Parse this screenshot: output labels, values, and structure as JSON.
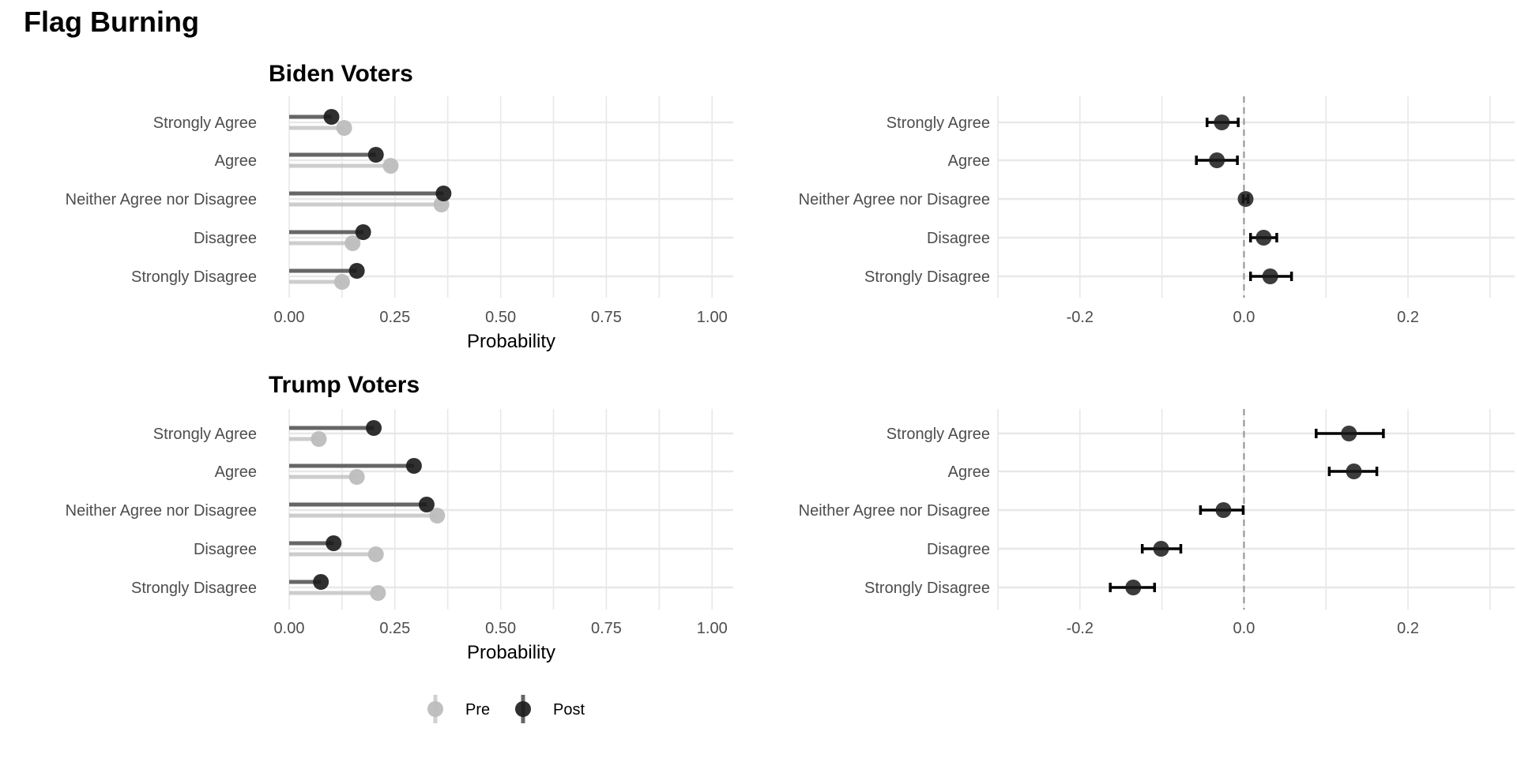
{
  "title": "Flag Burning",
  "legend": {
    "placement": "bottom",
    "entries": [
      {
        "label": "Pre",
        "color": "#bdbdbd"
      },
      {
        "label": "Post",
        "color": "#1a1a1a"
      }
    ]
  },
  "colors": {
    "pre": "#bdbdbd",
    "post": "#1a1a1a",
    "grid": "#e8e8e8",
    "zero_line": "#999999"
  },
  "chart_data": [
    {
      "type": "lollipop",
      "panel_title": "Biden Voters",
      "categories": [
        "Strongly Agree",
        "Agree",
        "Neither Agree nor Disagree",
        "Disagree",
        "Strongly Disagree"
      ],
      "series": [
        {
          "name": "Pre",
          "values": [
            0.13,
            0.24,
            0.36,
            0.15,
            0.125
          ]
        },
        {
          "name": "Post",
          "values": [
            0.1,
            0.205,
            0.365,
            0.175,
            0.16
          ]
        }
      ],
      "xlabel": "Probability",
      "xlim": [
        0,
        1.05
      ],
      "xticks": [
        "0.00",
        "0.25",
        "0.50",
        "0.75",
        "1.00"
      ],
      "xtick_values": [
        0,
        0.25,
        0.5,
        0.75,
        1.0
      ],
      "grid": true
    },
    {
      "type": "dot-errorbar",
      "panel_title": "",
      "categories": [
        "Strongly Agree",
        "Agree",
        "Neither Agree nor Disagree",
        "Disagree",
        "Strongly Disagree"
      ],
      "values": [
        -0.027,
        -0.033,
        0.002,
        0.024,
        0.032
      ],
      "ci_low": [
        -0.045,
        -0.058,
        -0.001,
        0.008,
        0.008
      ],
      "ci_high": [
        -0.007,
        -0.008,
        0.005,
        0.04,
        0.058
      ],
      "xlabel": "",
      "xlim": [
        -0.3,
        0.33
      ],
      "xticks": [
        "-0.2",
        "0.0",
        "0.2"
      ],
      "xtick_values": [
        -0.2,
        0.0,
        0.2
      ],
      "grid": true
    },
    {
      "type": "lollipop",
      "panel_title": "Trump Voters",
      "categories": [
        "Strongly Agree",
        "Agree",
        "Neither Agree nor Disagree",
        "Disagree",
        "Strongly Disagree"
      ],
      "series": [
        {
          "name": "Pre",
          "values": [
            0.07,
            0.16,
            0.35,
            0.205,
            0.21
          ]
        },
        {
          "name": "Post",
          "values": [
            0.2,
            0.295,
            0.325,
            0.105,
            0.075
          ]
        }
      ],
      "xlabel": "Probability",
      "xlim": [
        0,
        1.05
      ],
      "xticks": [
        "0.00",
        "0.25",
        "0.50",
        "0.75",
        "1.00"
      ],
      "xtick_values": [
        0,
        0.25,
        0.5,
        0.75,
        1.0
      ],
      "grid": true
    },
    {
      "type": "dot-errorbar",
      "panel_title": "",
      "categories": [
        "Strongly Agree",
        "Agree",
        "Neither Agree nor Disagree",
        "Disagree",
        "Strongly Disagree"
      ],
      "values": [
        0.128,
        0.134,
        -0.025,
        -0.101,
        -0.135
      ],
      "ci_low": [
        0.088,
        0.104,
        -0.053,
        -0.124,
        -0.163
      ],
      "ci_high": [
        0.17,
        0.162,
        -0.001,
        -0.077,
        -0.109
      ],
      "xlabel": "",
      "xlim": [
        -0.3,
        0.33
      ],
      "xticks": [
        "-0.2",
        "0.0",
        "0.2"
      ],
      "xtick_values": [
        -0.2,
        0.0,
        0.2
      ],
      "grid": true
    }
  ]
}
